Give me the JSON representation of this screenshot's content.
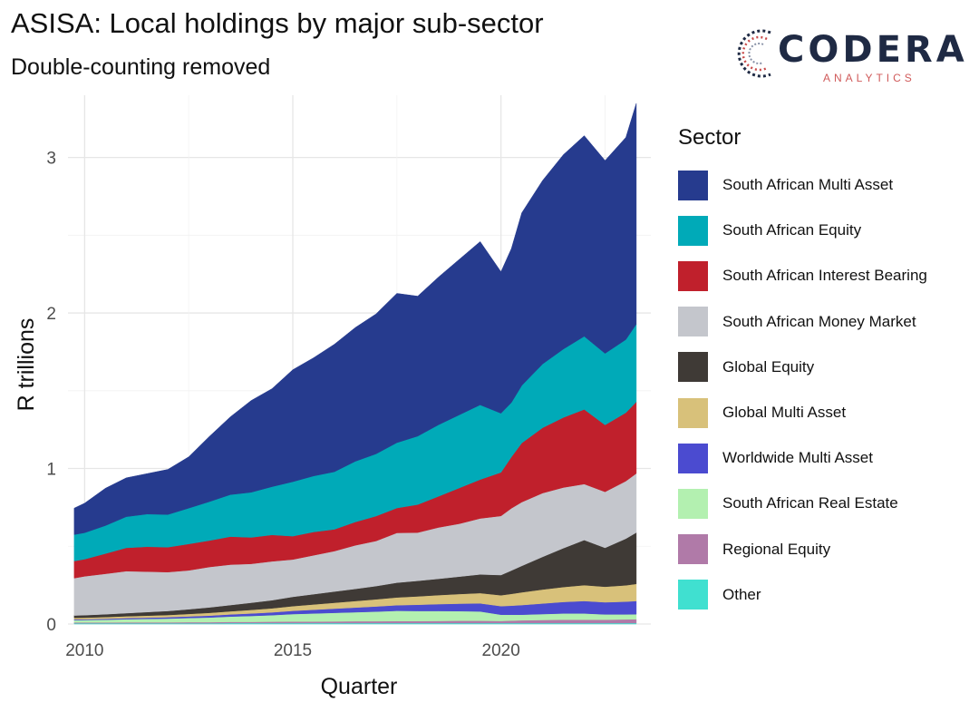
{
  "header": {
    "title": "ASISA: Local holdings by major sub-sector",
    "subtitle": "Double-counting removed"
  },
  "logo": {
    "word": "CODERA",
    "sub": "ANALYTICS",
    "mark_icon": "codera-arc-logo-icon"
  },
  "chart_data": {
    "type": "area",
    "stacked": true,
    "xlabel": "Quarter",
    "ylabel": "R trillions",
    "xlim": [
      2009.6,
      2023.6
    ],
    "ylim": [
      0,
      3.4
    ],
    "x_ticks": [
      2010,
      2015,
      2020
    ],
    "y_ticks": [
      0,
      1,
      2,
      3
    ],
    "grid": true,
    "legend_title": "Sector",
    "legend_position": "right",
    "x": [
      2009.75,
      2010.0,
      2010.5,
      2011.0,
      2011.5,
      2012.0,
      2012.5,
      2013.0,
      2013.5,
      2014.0,
      2014.5,
      2015.0,
      2015.5,
      2016.0,
      2016.5,
      2017.0,
      2017.5,
      2018.0,
      2018.5,
      2019.0,
      2019.5,
      2020.0,
      2020.25,
      2020.5,
      2021.0,
      2021.5,
      2022.0,
      2022.5,
      2023.0,
      2023.25
    ],
    "series": [
      {
        "name": "Other",
        "color": "#40e0d0",
        "values": [
          0.005,
          0.005,
          0.005,
          0.005,
          0.005,
          0.005,
          0.005,
          0.005,
          0.006,
          0.006,
          0.006,
          0.006,
          0.006,
          0.006,
          0.006,
          0.006,
          0.006,
          0.006,
          0.006,
          0.006,
          0.006,
          0.006,
          0.006,
          0.006,
          0.006,
          0.006,
          0.006,
          0.006,
          0.006,
          0.006
        ]
      },
      {
        "name": "Regional Equity",
        "color": "#b07aa8",
        "values": [
          0.005,
          0.005,
          0.005,
          0.006,
          0.006,
          0.006,
          0.007,
          0.007,
          0.008,
          0.008,
          0.009,
          0.01,
          0.01,
          0.011,
          0.012,
          0.012,
          0.013,
          0.013,
          0.014,
          0.015,
          0.015,
          0.014,
          0.016,
          0.018,
          0.02,
          0.022,
          0.022,
          0.022,
          0.024,
          0.025
        ]
      },
      {
        "name": "South African Real Estate",
        "color": "#b3f0b0",
        "values": [
          0.015,
          0.016,
          0.018,
          0.02,
          0.022,
          0.024,
          0.027,
          0.03,
          0.034,
          0.038,
          0.042,
          0.048,
          0.052,
          0.055,
          0.058,
          0.062,
          0.066,
          0.065,
          0.064,
          0.062,
          0.06,
          0.04,
          0.038,
          0.036,
          0.038,
          0.04,
          0.04,
          0.034,
          0.032,
          0.032
        ]
      },
      {
        "name": "Worldwide Multi Asset",
        "color": "#4b4bd0",
        "values": [
          0.005,
          0.005,
          0.006,
          0.007,
          0.008,
          0.009,
          0.01,
          0.012,
          0.014,
          0.016,
          0.018,
          0.021,
          0.024,
          0.027,
          0.03,
          0.033,
          0.036,
          0.04,
          0.044,
          0.048,
          0.052,
          0.055,
          0.058,
          0.062,
          0.068,
          0.074,
          0.08,
          0.078,
          0.082,
          0.085
        ]
      },
      {
        "name": "Global Multi Asset",
        "color": "#d8c17a",
        "values": [
          0.01,
          0.01,
          0.011,
          0.012,
          0.013,
          0.014,
          0.016,
          0.018,
          0.02,
          0.023,
          0.026,
          0.03,
          0.034,
          0.038,
          0.042,
          0.046,
          0.05,
          0.054,
          0.058,
          0.062,
          0.066,
          0.07,
          0.076,
          0.082,
          0.09,
          0.096,
          0.102,
          0.1,
          0.105,
          0.11
        ]
      },
      {
        "name": "Global Equity",
        "color": "#3f3a36",
        "values": [
          0.015,
          0.016,
          0.018,
          0.02,
          0.023,
          0.026,
          0.03,
          0.035,
          0.04,
          0.046,
          0.052,
          0.06,
          0.066,
          0.072,
          0.078,
          0.085,
          0.095,
          0.1,
          0.105,
          0.112,
          0.12,
          0.13,
          0.15,
          0.17,
          0.21,
          0.25,
          0.29,
          0.25,
          0.3,
          0.33
        ]
      },
      {
        "name": "South African Money Market",
        "color": "#c4c6cc",
        "values": [
          0.24,
          0.25,
          0.26,
          0.27,
          0.26,
          0.25,
          0.25,
          0.26,
          0.26,
          0.25,
          0.25,
          0.24,
          0.25,
          0.26,
          0.28,
          0.29,
          0.32,
          0.31,
          0.33,
          0.34,
          0.36,
          0.38,
          0.4,
          0.41,
          0.41,
          0.39,
          0.36,
          0.36,
          0.37,
          0.38
        ]
      },
      {
        "name": "South African Interest Bearing",
        "color": "#c0202c",
        "values": [
          0.11,
          0.11,
          0.13,
          0.15,
          0.16,
          0.16,
          0.17,
          0.17,
          0.18,
          0.17,
          0.17,
          0.15,
          0.15,
          0.14,
          0.15,
          0.16,
          0.16,
          0.18,
          0.2,
          0.23,
          0.25,
          0.28,
          0.33,
          0.38,
          0.42,
          0.45,
          0.48,
          0.43,
          0.44,
          0.46
        ]
      },
      {
        "name": "South African Equity",
        "color": "#00aab8",
        "values": [
          0.17,
          0.17,
          0.18,
          0.2,
          0.21,
          0.21,
          0.23,
          0.25,
          0.27,
          0.29,
          0.31,
          0.35,
          0.36,
          0.37,
          0.39,
          0.4,
          0.42,
          0.44,
          0.46,
          0.47,
          0.48,
          0.38,
          0.35,
          0.37,
          0.41,
          0.44,
          0.47,
          0.46,
          0.47,
          0.5
        ]
      },
      {
        "name": "South African Multi Asset",
        "color": "#263b8e",
        "values": [
          0.17,
          0.19,
          0.24,
          0.25,
          0.26,
          0.29,
          0.33,
          0.42,
          0.5,
          0.59,
          0.63,
          0.72,
          0.76,
          0.82,
          0.86,
          0.9,
          0.96,
          0.9,
          0.95,
          1.0,
          1.05,
          0.91,
          0.99,
          1.11,
          1.18,
          1.25,
          1.29,
          1.24,
          1.3,
          1.42
        ]
      }
    ]
  }
}
